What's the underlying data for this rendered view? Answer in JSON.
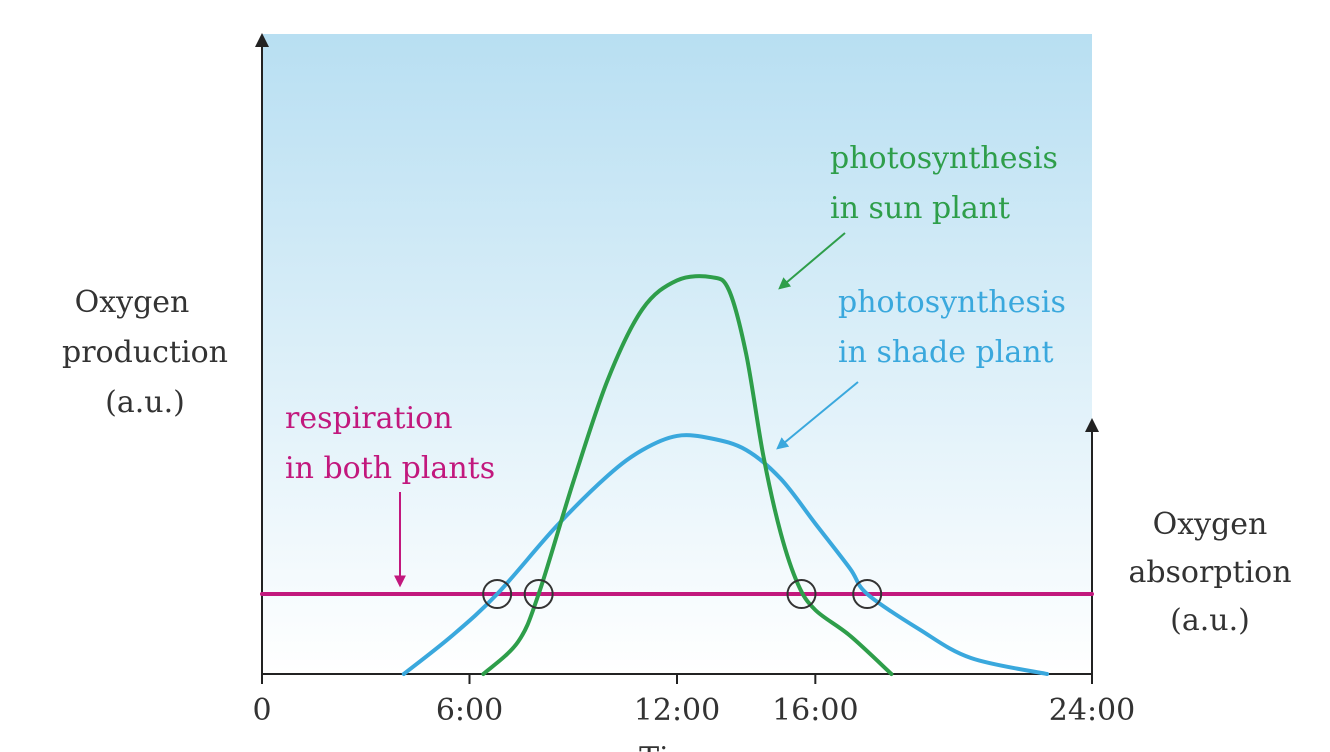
{
  "chart_data": {
    "type": "line",
    "title": "",
    "xlabel": "Time",
    "ylabel_left": [
      "Oxygen",
      "production",
      "(a.u.)"
    ],
    "ylabel_right": [
      "Oxygen",
      "absorption",
      "(a.u.)"
    ],
    "x_ticks": [
      {
        "value": 0,
        "label": "0"
      },
      {
        "value": 6,
        "label": "6:00"
      },
      {
        "value": 12,
        "label": "12:00"
      },
      {
        "value": 16,
        "label": "16:00"
      },
      {
        "value": 24,
        "label": "24:00"
      }
    ],
    "xlim": [
      0,
      24
    ],
    "ylim": [
      0,
      10
    ],
    "grid": false,
    "series": [
      {
        "name": "respiration in both plants",
        "label_lines": [
          "respiration",
          "in both plants"
        ],
        "color": "#c2187d",
        "points": [
          [
            0,
            1.25
          ],
          [
            24,
            1.25
          ]
        ]
      },
      {
        "name": "photosynthesis in shade plant",
        "label_lines": [
          "photosynthesis",
          "in shade plant"
        ],
        "color": "#3aa8dd",
        "points": [
          [
            4.1,
            0
          ],
          [
            5.5,
            0.6
          ],
          [
            6.8,
            1.25
          ],
          [
            8.5,
            2.3
          ],
          [
            10,
            3.1
          ],
          [
            11,
            3.5
          ],
          [
            12,
            3.72
          ],
          [
            13,
            3.68
          ],
          [
            14,
            3.5
          ],
          [
            15,
            3.05
          ],
          [
            16,
            2.35
          ],
          [
            17,
            1.65
          ],
          [
            17.5,
            1.25
          ],
          [
            19,
            0.7
          ],
          [
            20.5,
            0.25
          ],
          [
            22.7,
            0
          ]
        ]
      },
      {
        "name": "photosynthesis in sun plant",
        "label_lines": [
          "photosynthesis",
          "in sun plant"
        ],
        "color": "#2e9e4a",
        "points": [
          [
            6.4,
            0
          ],
          [
            7.4,
            0.5
          ],
          [
            8,
            1.25
          ],
          [
            9,
            3.0
          ],
          [
            10,
            4.6
          ],
          [
            11,
            5.7
          ],
          [
            12,
            6.15
          ],
          [
            13,
            6.2
          ],
          [
            13.5,
            6.0
          ],
          [
            14,
            5.0
          ],
          [
            14.5,
            3.4
          ],
          [
            15,
            2.2
          ],
          [
            15.5,
            1.4
          ],
          [
            16,
            1.0
          ],
          [
            17,
            0.6
          ],
          [
            18.2,
            0
          ]
        ]
      }
    ],
    "highlight_points": [
      [
        6.8,
        1.25
      ],
      [
        8,
        1.25
      ],
      [
        15.6,
        1.25
      ],
      [
        17.5,
        1.25
      ]
    ]
  }
}
